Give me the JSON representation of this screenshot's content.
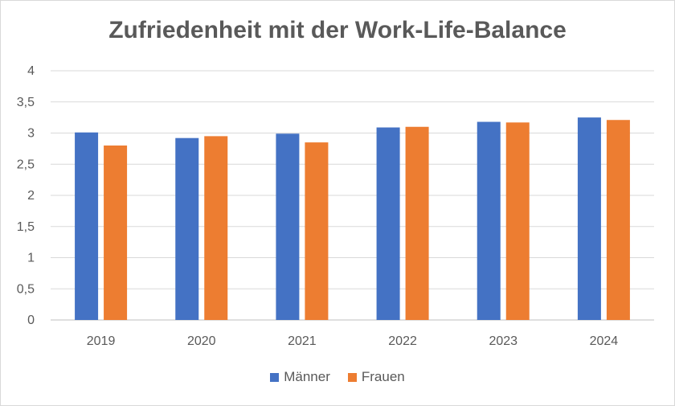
{
  "chart_data": {
    "type": "bar",
    "title": "Zufriedenheit mit der Work-Life-Balance",
    "xlabel": "",
    "ylabel": "",
    "categories": [
      "2019",
      "2020",
      "2021",
      "2022",
      "2023",
      "2024"
    ],
    "series": [
      {
        "name": "Männer",
        "color": "#4472C4",
        "values": [
          3.01,
          2.92,
          2.99,
          3.09,
          3.18,
          3.25
        ]
      },
      {
        "name": "Frauen",
        "color": "#ED7D31",
        "values": [
          2.8,
          2.95,
          2.85,
          3.1,
          3.17,
          3.21
        ]
      }
    ],
    "ylim": [
      0,
      4
    ],
    "yticks": [
      "0",
      "0,5",
      "1",
      "1,5",
      "2",
      "2,5",
      "3",
      "3,5",
      "4"
    ],
    "grid": true,
    "legend_position": "bottom"
  }
}
